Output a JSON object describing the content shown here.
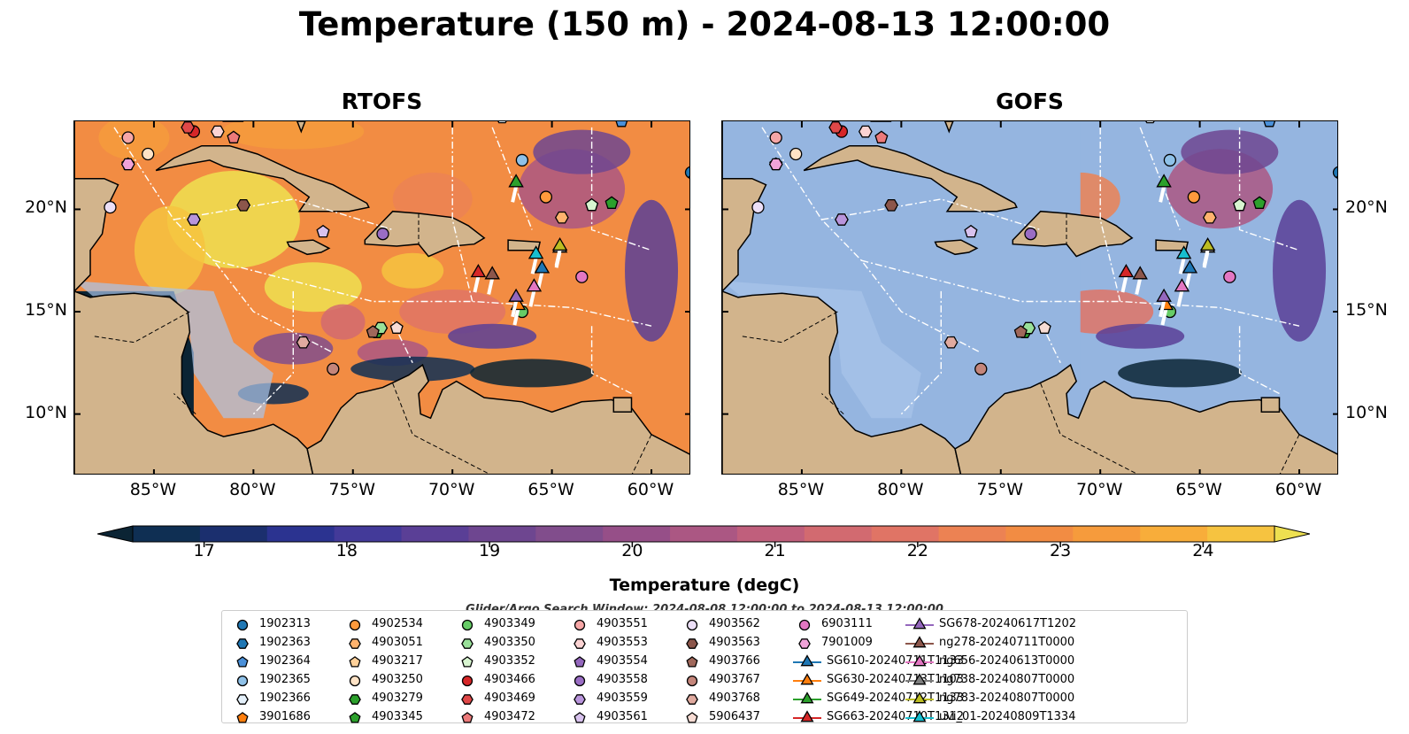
{
  "figure": {
    "title": "Temperature (150 m) - 2024-08-13 12:00:00",
    "search_window": "Glider/Argo Search Window: 2024-08-08 12:00:00 to 2024-08-13 12:00:00"
  },
  "chart_data": {
    "type": "heatmap",
    "panels": [
      {
        "title": "RTOFS",
        "coverage": "full",
        "description_of_field": "filled contours of 150 m temperature"
      },
      {
        "title": "GOFS",
        "coverage": "east of 71°W only; west shown as masked (light blue)",
        "description_of_field": "filled contours of 150 m temperature"
      }
    ],
    "x_ticks": [
      "85°W",
      "80°W",
      "75°W",
      "70°W",
      "65°W",
      "60°W"
    ],
    "x_tick_values": [
      -85,
      -80,
      -75,
      -70,
      -65,
      -60
    ],
    "y_ticks": [
      "20°N",
      "15°N",
      "10°N"
    ],
    "y_tick_values": [
      20,
      15,
      10
    ],
    "xlim": [
      -89,
      -58
    ],
    "ylim": [
      7,
      24.3
    ],
    "colorbar": {
      "label": "Temperature (degC)",
      "ticks": [
        17,
        18,
        19,
        20,
        21,
        22,
        23,
        24
      ],
      "range": [
        16.5,
        24.5
      ],
      "extend": "both",
      "colors": [
        "#0b2434",
        "#0f2f53",
        "#1b2f6e",
        "#2b3390",
        "#433a99",
        "#5a3f96",
        "#6e4690",
        "#814d8c",
        "#964f88",
        "#ab5783",
        "#c05f7c",
        "#d26a70",
        "#e07465",
        "#ec8253",
        "#f28c43",
        "#f69b3c",
        "#f8ad3a",
        "#f6c340",
        "#eee050"
      ]
    },
    "legend_placement": "bottom-center",
    "legend_entries": [
      {
        "name": "1902313",
        "marker": "circle",
        "color": "#1f77b4"
      },
      {
        "name": "1902363",
        "marker": "hexagon",
        "color": "#1f77b4"
      },
      {
        "name": "1902364",
        "marker": "pentagon",
        "color": "#4a90d9"
      },
      {
        "name": "1902365",
        "marker": "circle",
        "color": "#8fc1e8"
      },
      {
        "name": "1902366",
        "marker": "hexagon",
        "color": "#e5f1fb"
      },
      {
        "name": "3901686",
        "marker": "pentagon",
        "color": "#ff7f0e"
      },
      {
        "name": "4902534",
        "marker": "circle",
        "color": "#ff9a3c"
      },
      {
        "name": "4903051",
        "marker": "hexagon",
        "color": "#ffb36e"
      },
      {
        "name": "4903217",
        "marker": "pentagon",
        "color": "#ffd19a"
      },
      {
        "name": "4903250",
        "marker": "circle",
        "color": "#ffe3c6"
      },
      {
        "name": "4903279",
        "marker": "hexagon",
        "color": "#2ca02c"
      },
      {
        "name": "4903345",
        "marker": "pentagon",
        "color": "#2ca02c"
      },
      {
        "name": "4903349",
        "marker": "circle",
        "color": "#66cc66"
      },
      {
        "name": "4903350",
        "marker": "hexagon",
        "color": "#99e099"
      },
      {
        "name": "4903352",
        "marker": "pentagon",
        "color": "#d8f5d0"
      },
      {
        "name": "4903466",
        "marker": "circle",
        "color": "#d62728"
      },
      {
        "name": "4903469",
        "marker": "hexagon",
        "color": "#e04848"
      },
      {
        "name": "4903472",
        "marker": "pentagon",
        "color": "#ec7a7a"
      },
      {
        "name": "4903551",
        "marker": "circle",
        "color": "#f6a6a6"
      },
      {
        "name": "4903553",
        "marker": "hexagon",
        "color": "#fbd3d3"
      },
      {
        "name": "4903554",
        "marker": "pentagon",
        "color": "#9467bd"
      },
      {
        "name": "4903558",
        "marker": "circle",
        "color": "#9a6dc4"
      },
      {
        "name": "4903559",
        "marker": "hexagon",
        "color": "#b995dc"
      },
      {
        "name": "4903561",
        "marker": "pentagon",
        "color": "#d8c2ee"
      },
      {
        "name": "4903562",
        "marker": "circle",
        "color": "#ecdff7"
      },
      {
        "name": "4903563",
        "marker": "hexagon",
        "color": "#8c564b"
      },
      {
        "name": "4903766",
        "marker": "pentagon",
        "color": "#a0685b"
      },
      {
        "name": "4903767",
        "marker": "circle",
        "color": "#c4857a"
      },
      {
        "name": "4903768",
        "marker": "hexagon",
        "color": "#e0aa9f"
      },
      {
        "name": "5906437",
        "marker": "pentagon",
        "color": "#f7dcd4"
      },
      {
        "name": "6903111",
        "marker": "circle",
        "color": "#e377c2"
      },
      {
        "name": "7901009",
        "marker": "hexagon",
        "color": "#f0a3d8"
      },
      {
        "name": "SG610-20240711T1133",
        "marker": "triangle-line",
        "color": "#1f77b4"
      },
      {
        "name": "SG630-20240713T1103",
        "marker": "triangle-line",
        "color": "#ff7f0e"
      },
      {
        "name": "SG649-20240712T1133",
        "marker": "triangle-line",
        "color": "#2ca02c"
      },
      {
        "name": "SG663-20240710T1312",
        "marker": "triangle-line",
        "color": "#d62728"
      },
      {
        "name": "SG678-20240617T1202",
        "marker": "triangle-line",
        "color": "#9467bd"
      },
      {
        "name": "ng278-20240711T0000",
        "marker": "triangle-line",
        "color": "#8c564b"
      },
      {
        "name": "ng656-20240613T0000",
        "marker": "triangle-line",
        "color": "#e377c2"
      },
      {
        "name": "ng738-20240807T0000",
        "marker": "triangle-line",
        "color": "#7f7f7f"
      },
      {
        "name": "ng783-20240807T0000",
        "marker": "triangle-line",
        "color": "#bcbd22"
      },
      {
        "name": "uvi_01-20240809T1334",
        "marker": "triangle-line",
        "color": "#17becf"
      }
    ],
    "observations": [
      {
        "name": "1902313",
        "lon": -58.0,
        "lat": 21.8
      },
      {
        "name": "1902364",
        "lon": -61.5,
        "lat": 24.3
      },
      {
        "name": "1902365",
        "lon": -66.5,
        "lat": 22.4
      },
      {
        "name": "1902366",
        "lon": -67.5,
        "lat": 24.5
      },
      {
        "name": "3901686",
        "lon": -57.8,
        "lat": 21.5
      },
      {
        "name": "4902534",
        "lon": -65.3,
        "lat": 20.6
      },
      {
        "name": "4903051",
        "lon": -64.5,
        "lat": 19.6
      },
      {
        "name": "4903217",
        "lon": -63.0,
        "lat": 20.2
      },
      {
        "name": "4903250",
        "lon": -85.3,
        "lat": 22.7
      },
      {
        "name": "4903279",
        "lon": -73.8,
        "lat": 14.0
      },
      {
        "name": "4903345",
        "lon": -62.0,
        "lat": 20.3
      },
      {
        "name": "4903349",
        "lon": -66.5,
        "lat": 15.0
      },
      {
        "name": "4903350",
        "lon": -73.6,
        "lat": 14.2
      },
      {
        "name": "4903352",
        "lon": -63.0,
        "lat": 20.2
      },
      {
        "name": "4903466",
        "lon": -83.0,
        "lat": 23.8
      },
      {
        "name": "4903469",
        "lon": -83.3,
        "lat": 24.0
      },
      {
        "name": "4903472",
        "lon": -81.0,
        "lat": 23.5
      },
      {
        "name": "4903551",
        "lon": -86.3,
        "lat": 23.5
      },
      {
        "name": "4903553",
        "lon": -81.8,
        "lat": 23.8
      },
      {
        "name": "4903554",
        "lon": -86.3,
        "lat": 22.2
      },
      {
        "name": "4903558",
        "lon": -73.5,
        "lat": 18.8
      },
      {
        "name": "4903559",
        "lon": -83.0,
        "lat": 19.5
      },
      {
        "name": "4903561",
        "lon": -76.5,
        "lat": 18.9
      },
      {
        "name": "4903562",
        "lon": -87.2,
        "lat": 20.1
      },
      {
        "name": "4903563",
        "lon": -80.5,
        "lat": 20.2
      },
      {
        "name": "4903766",
        "lon": -74.0,
        "lat": 14.0
      },
      {
        "name": "4903767",
        "lon": -76.0,
        "lat": 12.2
      },
      {
        "name": "4903768",
        "lon": -77.5,
        "lat": 13.5
      },
      {
        "name": "5906437",
        "lon": -72.8,
        "lat": 14.2
      },
      {
        "name": "6903111",
        "lon": -63.5,
        "lat": 16.7
      },
      {
        "name": "7901009",
        "lon": -86.3,
        "lat": 22.2
      },
      {
        "name": "SG610-20240711T1133",
        "lon": -65.5,
        "lat": 17.1
      },
      {
        "name": "SG630-20240713T1103",
        "lon": -66.7,
        "lat": 15.3
      },
      {
        "name": "SG649-20240712T1133",
        "lon": -66.8,
        "lat": 21.3
      },
      {
        "name": "SG663-20240710T1312",
        "lon": -68.7,
        "lat": 16.9
      },
      {
        "name": "SG678-20240617T1202",
        "lon": -66.8,
        "lat": 15.7
      },
      {
        "name": "ng278-20240711T0000",
        "lon": -68.0,
        "lat": 16.8
      },
      {
        "name": "ng656-20240613T0000",
        "lon": -65.9,
        "lat": 16.2
      },
      {
        "name": "ng738-20240807T0000",
        "lon": -64.6,
        "lat": 18.1
      },
      {
        "name": "ng783-20240807T0000",
        "lon": -64.6,
        "lat": 18.2
      },
      {
        "name": "uvi_01-20240809T1334",
        "lon": -65.8,
        "lat": 17.8
      }
    ]
  }
}
